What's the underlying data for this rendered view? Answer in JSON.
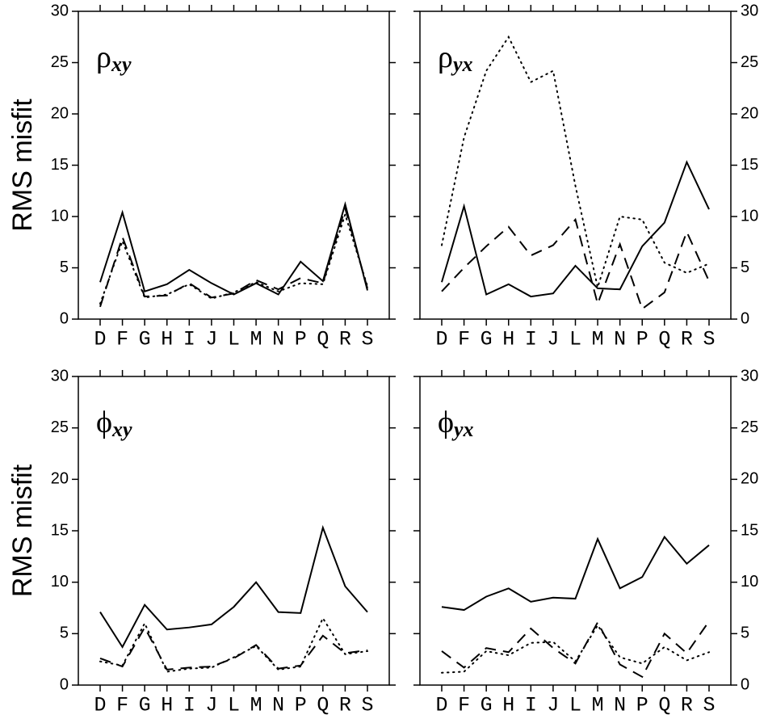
{
  "chart_data": [
    {
      "type": "line",
      "title": "ρ",
      "title_sub": "xy",
      "ylabel": "RMS misfit",
      "ytick_side": "left",
      "categories": [
        "D",
        "F",
        "G",
        "H",
        "I",
        "J",
        "L",
        "M",
        "N",
        "P",
        "Q",
        "R",
        "S"
      ],
      "ylim": [
        0,
        30
      ],
      "yticks": [
        0,
        5,
        10,
        15,
        20,
        25,
        30
      ],
      "series": [
        {
          "color": "#000000",
          "dash": "solid",
          "values": [
            3.6,
            10.4,
            2.7,
            3.4,
            4.8,
            3.5,
            2.4,
            3.5,
            2.4,
            5.6,
            3.7,
            11.2,
            2.8
          ]
        },
        {
          "color": "#000000",
          "dash": "dashed",
          "values": [
            1.2,
            8.0,
            2.2,
            2.3,
            3.5,
            2.1,
            2.5,
            3.8,
            2.9,
            4.0,
            3.5,
            10.8,
            3.0
          ]
        },
        {
          "color": "#000000",
          "dash": "dotted",
          "values": [
            1.5,
            7.6,
            2.1,
            2.4,
            3.4,
            2.0,
            2.6,
            3.6,
            2.7,
            3.5,
            3.4,
            10.2,
            3.2
          ]
        }
      ]
    },
    {
      "type": "line",
      "title": "ρ",
      "title_sub": "yx",
      "ytick_side": "right",
      "categories": [
        "D",
        "F",
        "G",
        "H",
        "I",
        "J",
        "L",
        "M",
        "N",
        "P",
        "Q",
        "R",
        "S"
      ],
      "ylim": [
        0,
        30
      ],
      "yticks": [
        0,
        5,
        10,
        15,
        20,
        25,
        30
      ],
      "series": [
        {
          "color": "#000000",
          "dash": "solid",
          "values": [
            3.6,
            11.0,
            2.4,
            3.4,
            2.2,
            2.5,
            5.2,
            3.0,
            2.9,
            7.1,
            9.4,
            15.3,
            10.7
          ]
        },
        {
          "color": "#000000",
          "dash": "dashed",
          "values": [
            2.7,
            5.0,
            7.1,
            9.0,
            6.2,
            7.2,
            9.7,
            1.5,
            7.3,
            1.0,
            2.6,
            8.5,
            3.7
          ]
        },
        {
          "color": "#000000",
          "dash": "dotted",
          "values": [
            7.2,
            17.7,
            24.2,
            27.5,
            23.1,
            24.2,
            13.0,
            3.1,
            10.0,
            9.7,
            5.5,
            4.5,
            5.4
          ]
        }
      ]
    },
    {
      "type": "line",
      "title": "ϕ",
      "title_sub": "xy",
      "ylabel": "RMS misfit",
      "ytick_side": "left",
      "categories": [
        "D",
        "F",
        "G",
        "H",
        "I",
        "J",
        "L",
        "M",
        "N",
        "P",
        "Q",
        "R",
        "S"
      ],
      "ylim": [
        0,
        30
      ],
      "yticks": [
        0,
        5,
        10,
        15,
        20,
        25,
        30
      ],
      "series": [
        {
          "color": "#000000",
          "dash": "solid",
          "values": [
            7.1,
            3.7,
            7.8,
            5.4,
            5.6,
            5.9,
            7.6,
            10.0,
            7.1,
            7.0,
            15.3,
            9.6,
            7.1
          ]
        },
        {
          "color": "#000000",
          "dash": "dashed",
          "values": [
            2.6,
            1.8,
            5.6,
            1.5,
            1.7,
            1.8,
            2.6,
            3.9,
            1.6,
            1.9,
            4.8,
            3.1,
            3.4
          ]
        },
        {
          "color": "#000000",
          "dash": "dotted",
          "values": [
            2.3,
            1.9,
            6.0,
            1.3,
            1.6,
            1.7,
            2.7,
            3.8,
            1.5,
            1.8,
            6.5,
            3.0,
            3.3
          ]
        }
      ]
    },
    {
      "type": "line",
      "title": "ϕ",
      "title_sub": "yx",
      "ytick_side": "right",
      "categories": [
        "D",
        "F",
        "G",
        "H",
        "I",
        "J",
        "L",
        "M",
        "N",
        "P",
        "Q",
        "R",
        "S"
      ],
      "ylim": [
        0,
        30
      ],
      "yticks": [
        0,
        5,
        10,
        15,
        20,
        25,
        30
      ],
      "series": [
        {
          "color": "#000000",
          "dash": "solid",
          "values": [
            7.6,
            7.3,
            8.6,
            9.4,
            8.1,
            8.5,
            8.4,
            14.2,
            9.4,
            10.5,
            14.4,
            11.8,
            13.6
          ]
        },
        {
          "color": "#000000",
          "dash": "dashed",
          "values": [
            3.3,
            1.7,
            3.6,
            3.2,
            5.5,
            3.6,
            2.1,
            6.1,
            2.0,
            0.8,
            5.0,
            3.1,
            6.2
          ]
        },
        {
          "color": "#000000",
          "dash": "dotted",
          "values": [
            1.2,
            1.3,
            3.3,
            2.9,
            4.1,
            4.2,
            2.3,
            5.8,
            2.7,
            2.1,
            3.7,
            2.4,
            3.2
          ]
        }
      ]
    }
  ]
}
